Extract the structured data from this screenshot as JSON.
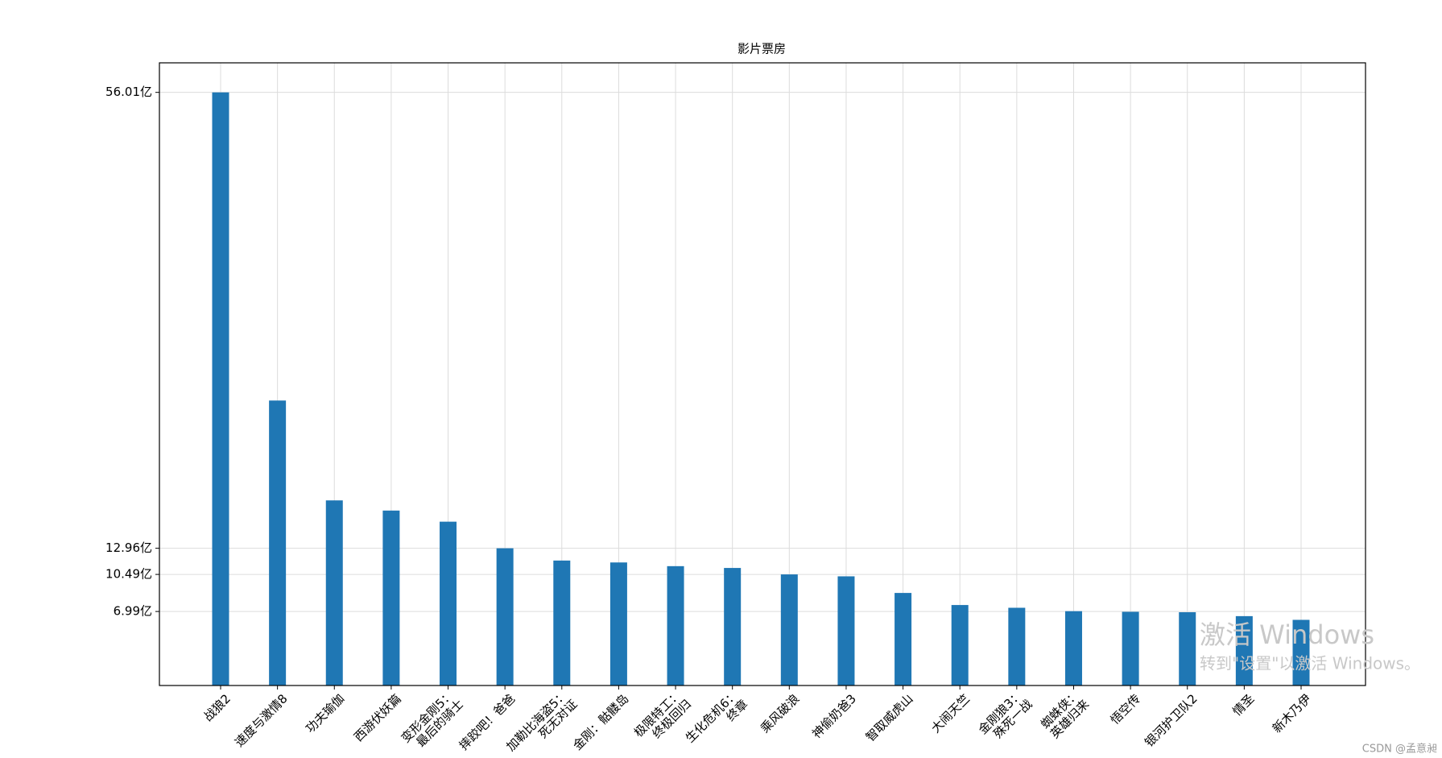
{
  "chart_data": {
    "type": "bar",
    "title": "影片票房",
    "categories": [
      "战狼2",
      "速度与激情8",
      "功夫瑜伽",
      "西游伏妖篇",
      "变形金刚5：\n最后的骑士",
      "摔跤吧！爸爸",
      "加勒比海盗5：\n死无对证",
      "金刚：骷髅岛",
      "极限特工：\n终极回归",
      "生化危机6：\n终章",
      "乘风破浪",
      "神偷奶爸3",
      "智取威虎山",
      "大闹天竺",
      "金刚狼3：\n殊死一战",
      "蜘蛛侠：\n英雄归来",
      "悟空传",
      "银河护卫队2",
      "情圣",
      "新木乃伊"
    ],
    "values": [
      56.01,
      26.91,
      17.48,
      16.52,
      15.47,
      12.96,
      11.8,
      11.62,
      11.27,
      11.1,
      10.49,
      10.31,
      8.74,
      7.6,
      7.34,
      7.02,
      6.96,
      6.92,
      6.55,
      6.2
    ],
    "color": "#1f77b4",
    "ylim": [
      0,
      58.8
    ],
    "yticks": [
      {
        "value": 56.01,
        "label": "56.01亿"
      },
      {
        "value": 12.96,
        "label": "12.96亿"
      },
      {
        "value": 10.49,
        "label": "10.49亿"
      },
      {
        "value": 6.99,
        "label": "6.99亿"
      }
    ],
    "grid": true,
    "annotations": [
      "激活 Windows",
      "转到\"设置\"以激活 Windows。",
      "CSDN @孟意昶"
    ]
  }
}
